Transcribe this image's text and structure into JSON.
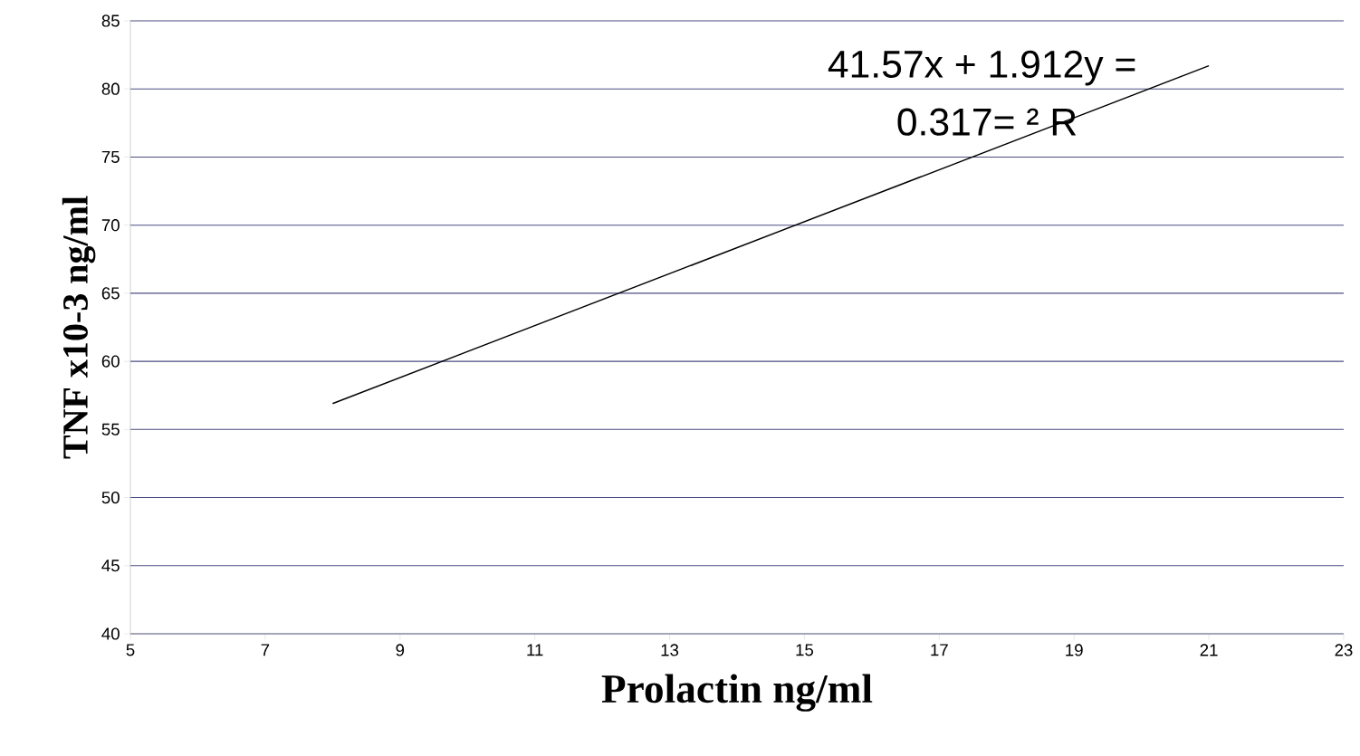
{
  "chart_data": {
    "type": "line",
    "xlabel": "Prolactin ng/ml",
    "ylabel": "TNF x10-3 ng/ml",
    "annotations": [
      "41.57x + 1.912y =",
      "0.317= ² R"
    ],
    "series": [
      {
        "x": [
          8,
          21
        ],
        "values": [
          56.9,
          81.7
        ],
        "color": "#000000"
      }
    ],
    "xlim": [
      5,
      23
    ],
    "ylim": [
      40,
      85
    ],
    "xticks": [
      5,
      7,
      9,
      11,
      13,
      15,
      17,
      19,
      21,
      23
    ],
    "yticks": [
      40,
      45,
      50,
      55,
      60,
      65,
      70,
      75,
      80,
      85
    ],
    "grid": "y",
    "marker": "none",
    "line_style": "solid"
  }
}
